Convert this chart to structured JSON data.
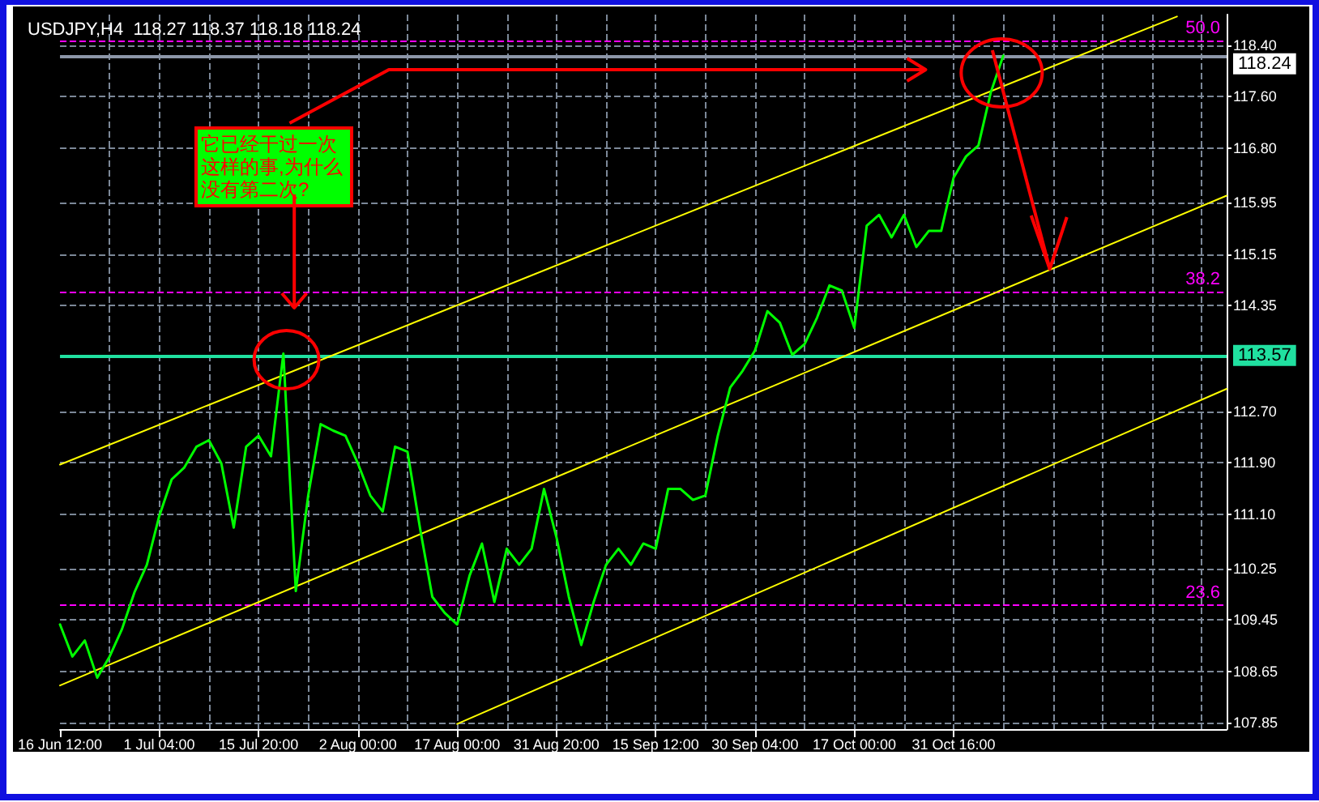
{
  "chart_data": {
    "type": "line",
    "title": "USDJPY,H4  118.27 118.37 118.18 118.24",
    "categories": [
      "16 Jun 12:00",
      null,
      null,
      null,
      null,
      null,
      null,
      null,
      "1 Jul 04:00",
      null,
      null,
      null,
      null,
      null,
      null,
      null,
      "15 Jul 20:00",
      null,
      null,
      null,
      null,
      null,
      null,
      null,
      "2 Aug 00:00",
      null,
      null,
      null,
      null,
      null,
      null,
      null,
      "17 Aug 00:00",
      null,
      null,
      null,
      null,
      null,
      null,
      null,
      "31 Aug 20:00",
      null,
      null,
      null,
      null,
      null,
      null,
      null,
      "15 Sep 12:00",
      null,
      null,
      null,
      null,
      null,
      null,
      null,
      "30 Sep 04:00",
      null,
      null,
      null,
      null,
      null,
      null,
      null,
      "17 Oct 00:00",
      null,
      null,
      null,
      null,
      null,
      null,
      null,
      "31 Oct 16:00",
      null,
      null,
      null,
      null,
      null,
      null,
      null,
      null,
      null,
      null,
      null,
      null,
      null,
      null,
      null,
      null,
      null,
      null,
      null,
      null,
      null,
      null
    ],
    "series": [
      {
        "color": "#00ff00",
        "values": [
          109.38,
          108.88,
          109.13,
          108.55,
          108.88,
          109.31,
          109.88,
          110.31,
          111.07,
          111.64,
          111.82,
          112.15,
          112.25,
          111.89,
          110.89,
          112.15,
          112.32,
          112.0,
          113.6,
          109.9,
          111.39,
          112.5,
          112.4,
          112.32,
          111.89,
          111.39,
          111.14,
          112.15,
          112.07,
          110.89,
          109.81,
          109.56,
          109.38,
          110.14,
          110.64,
          109.73,
          110.56,
          110.31,
          110.56,
          111.49,
          110.74,
          109.81,
          109.06,
          109.73,
          110.31,
          110.56,
          110.31,
          110.64,
          110.56,
          111.49,
          111.49,
          111.32,
          111.39,
          112.32,
          113.07,
          113.33,
          113.65,
          114.26,
          114.08,
          113.58,
          113.75,
          114.16,
          114.66,
          114.58,
          114.0,
          115.59,
          115.76,
          115.41,
          115.76,
          115.26,
          115.51,
          115.51,
          116.34,
          116.67,
          116.84,
          117.67,
          118.24,
          null,
          null,
          null,
          null,
          null,
          null,
          null,
          null,
          null,
          null,
          null,
          null,
          null,
          null,
          null,
          null,
          null,
          null
        ]
      },
      {
        "color": "#ffff00",
        "values": [
          111.87,
          null,
          null,
          null,
          null,
          null,
          null,
          null,
          null,
          null,
          null,
          null,
          null,
          null,
          null,
          null,
          null,
          null,
          null,
          null,
          null,
          null,
          null,
          null,
          null,
          null,
          null,
          null,
          null,
          null,
          null,
          null,
          null,
          null,
          null,
          null,
          null,
          null,
          null,
          null,
          null,
          null,
          null,
          null,
          null,
          null,
          null,
          null,
          null,
          null,
          null,
          null,
          null,
          null,
          null,
          null,
          null,
          null,
          null,
          null,
          null,
          null,
          null,
          null,
          null,
          null,
          null,
          null,
          null,
          null,
          null,
          null,
          null,
          null,
          null,
          null,
          null,
          null,
          null,
          null,
          null,
          null,
          null,
          null,
          null,
          null,
          null,
          null,
          null,
          null,
          118.85,
          null,
          null,
          null,
          null
        ]
      },
      {
        "color": "#ffff00",
        "values": [
          108.43,
          null,
          null,
          null,
          null,
          null,
          null,
          null,
          null,
          null,
          null,
          null,
          null,
          null,
          null,
          null,
          null,
          null,
          null,
          null,
          null,
          null,
          null,
          null,
          null,
          null,
          null,
          null,
          null,
          null,
          null,
          null,
          null,
          null,
          null,
          null,
          null,
          null,
          null,
          null,
          null,
          null,
          null,
          null,
          null,
          null,
          null,
          null,
          null,
          null,
          null,
          null,
          null,
          null,
          null,
          null,
          null,
          null,
          null,
          null,
          null,
          null,
          null,
          null,
          null,
          null,
          null,
          null,
          null,
          null,
          null,
          null,
          null,
          null,
          null,
          null,
          null,
          null,
          null,
          null,
          null,
          null,
          null,
          null,
          null,
          null,
          null,
          null,
          null,
          null,
          null,
          null,
          null,
          null,
          116.06
        ]
      },
      {
        "color": "#ffff00",
        "values": [
          null,
          null,
          null,
          null,
          null,
          null,
          null,
          null,
          null,
          null,
          null,
          null,
          null,
          null,
          null,
          null,
          null,
          null,
          null,
          null,
          null,
          null,
          null,
          null,
          null,
          null,
          null,
          null,
          null,
          null,
          null,
          null,
          107.83,
          null,
          null,
          null,
          null,
          null,
          null,
          null,
          null,
          null,
          null,
          null,
          null,
          null,
          null,
          null,
          null,
          null,
          null,
          null,
          null,
          null,
          null,
          null,
          null,
          null,
          null,
          null,
          null,
          null,
          null,
          null,
          null,
          null,
          null,
          null,
          null,
          null,
          null,
          null,
          null,
          null,
          null,
          null,
          null,
          null,
          null,
          null,
          null,
          null,
          null,
          null,
          null,
          null,
          null,
          null,
          null,
          null,
          null,
          null,
          null,
          null,
          113.05
        ]
      }
    ],
    "ylim": [
      107.75,
      118.88
    ],
    "yticks": [
      107.85,
      108.65,
      109.45,
      110.25,
      {
        "value": 111.1,
        "label": "111.10"
      },
      {
        "value": 111.9,
        "label": "111.90"
      },
      {
        "value": 112.7,
        "label": "112.70"
      },
      114.35,
      115.15,
      115.95,
      {
        "value": 116.8,
        "label": "116.80"
      },
      {
        "value": 117.6,
        "label": "117.60"
      },
      {
        "value": 118.4,
        "label": "118.40"
      }
    ],
    "ref_lines": [
      {
        "axis": "y",
        "value": 113.57,
        "label": "113.57",
        "color": "#20e0a0",
        "line_style": "solid"
      },
      {
        "axis": "y",
        "value": 118.24,
        "label": "118.24",
        "color": "#8c96a8",
        "line_style": "solid"
      },
      {
        "axis": "y",
        "value": 118.48,
        "color": "#ff00ff",
        "line_style": "dashed"
      },
      {
        "axis": "y",
        "value": 114.56,
        "color": "#ff00ff",
        "line_style": "dashed"
      },
      {
        "axis": "y",
        "value": 109.68,
        "color": "#ff00ff",
        "line_style": "dashed"
      }
    ],
    "annotations": [
      "它已经干过一次这样的事,为什么没有第二次?",
      {
        "text": "50.0",
        "y": 118.48
      },
      {
        "text": "38.2",
        "y": 114.56
      },
      {
        "text": "23.6",
        "y": 109.68
      }
    ],
    "grid": true,
    "marker": "none",
    "line_style": "solid"
  }
}
